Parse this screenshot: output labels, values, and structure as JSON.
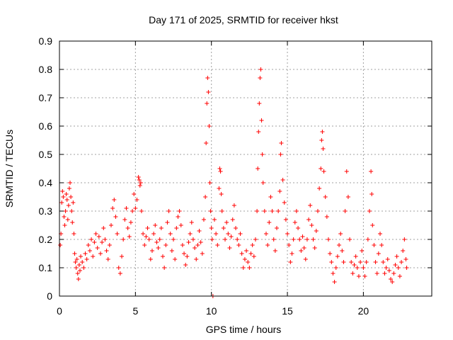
{
  "chart_data": {
    "type": "scatter",
    "title": "Day 171 of 2025, SRMTID for receiver hkst",
    "xlabel": "GPS time / hours",
    "ylabel": "SRMTID / TECUs",
    "xlim": [
      0,
      24.5
    ],
    "ylim": [
      0,
      0.9
    ],
    "x_ticks": [
      0,
      5,
      10,
      15,
      20
    ],
    "x_tick_labels": [
      "0",
      "5",
      "10",
      "15",
      "20"
    ],
    "y_ticks": [
      0,
      0.1,
      0.2,
      0.3,
      0.4,
      0.5,
      0.6,
      0.7,
      0.8,
      0.9
    ],
    "y_tick_labels": [
      "0",
      "0.1",
      "0.2",
      "0.3",
      "0.4",
      "0.5",
      "0.6",
      "0.7",
      "0.8",
      "0.9"
    ],
    "grid": true,
    "marker": "+",
    "series": [
      {
        "name": "SRMTID",
        "color": "#ff0000",
        "points": [
          [
            0.05,
            0.18
          ],
          [
            0.1,
            0.22
          ],
          [
            0.15,
            0.33
          ],
          [
            0.2,
            0.37
          ],
          [
            0.25,
            0.35
          ],
          [
            0.3,
            0.28
          ],
          [
            0.35,
            0.25
          ],
          [
            0.4,
            0.3
          ],
          [
            0.45,
            0.36
          ],
          [
            0.5,
            0.34
          ],
          [
            0.55,
            0.27
          ],
          [
            0.6,
            0.32
          ],
          [
            0.65,
            0.38
          ],
          [
            0.7,
            0.4
          ],
          [
            0.75,
            0.35
          ],
          [
            0.8,
            0.3
          ],
          [
            0.85,
            0.26
          ],
          [
            0.9,
            0.33
          ],
          [
            0.95,
            0.22
          ],
          [
            1.0,
            0.15
          ],
          [
            1.05,
            0.12
          ],
          [
            1.1,
            0.1
          ],
          [
            1.15,
            0.13
          ],
          [
            1.2,
            0.08
          ],
          [
            1.25,
            0.06
          ],
          [
            1.3,
            0.11
          ],
          [
            1.35,
            0.09
          ],
          [
            1.4,
            0.14
          ],
          [
            1.5,
            0.12
          ],
          [
            1.6,
            0.1
          ],
          [
            1.7,
            0.15
          ],
          [
            1.8,
            0.13
          ],
          [
            1.9,
            0.18
          ],
          [
            2.0,
            0.16
          ],
          [
            2.1,
            0.2
          ],
          [
            2.2,
            0.14
          ],
          [
            2.3,
            0.19
          ],
          [
            2.4,
            0.22
          ],
          [
            2.5,
            0.17
          ],
          [
            2.6,
            0.21
          ],
          [
            2.7,
            0.15
          ],
          [
            2.8,
            0.19
          ],
          [
            2.9,
            0.24
          ],
          [
            3.0,
            0.2
          ],
          [
            3.1,
            0.16
          ],
          [
            3.2,
            0.13
          ],
          [
            3.3,
            0.18
          ],
          [
            3.4,
            0.25
          ],
          [
            3.5,
            0.31
          ],
          [
            3.6,
            0.34
          ],
          [
            3.7,
            0.28
          ],
          [
            3.8,
            0.22
          ],
          [
            3.9,
            0.1
          ],
          [
            4.0,
            0.08
          ],
          [
            4.1,
            0.14
          ],
          [
            4.2,
            0.2
          ],
          [
            4.3,
            0.27
          ],
          [
            4.4,
            0.31
          ],
          [
            4.5,
            0.24
          ],
          [
            4.6,
            0.21
          ],
          [
            4.7,
            0.26
          ],
          [
            4.8,
            0.3
          ],
          [
            4.9,
            0.36
          ],
          [
            5.0,
            0.31
          ],
          [
            5.1,
            0.34
          ],
          [
            5.2,
            0.42
          ],
          [
            5.25,
            0.41
          ],
          [
            5.3,
            0.39
          ],
          [
            5.35,
            0.4
          ],
          [
            5.4,
            0.3
          ],
          [
            5.5,
            0.22
          ],
          [
            5.6,
            0.18
          ],
          [
            5.7,
            0.21
          ],
          [
            5.8,
            0.24
          ],
          [
            5.9,
            0.2
          ],
          [
            6.0,
            0.13
          ],
          [
            6.1,
            0.16
          ],
          [
            6.2,
            0.22
          ],
          [
            6.3,
            0.25
          ],
          [
            6.4,
            0.19
          ],
          [
            6.5,
            0.17
          ],
          [
            6.6,
            0.2
          ],
          [
            6.7,
            0.24
          ],
          [
            6.8,
            0.14
          ],
          [
            6.9,
            0.1
          ],
          [
            7.0,
            0.18
          ],
          [
            7.1,
            0.26
          ],
          [
            7.2,
            0.3
          ],
          [
            7.3,
            0.22
          ],
          [
            7.4,
            0.16
          ],
          [
            7.5,
            0.2
          ],
          [
            7.6,
            0.13
          ],
          [
            7.7,
            0.24
          ],
          [
            7.8,
            0.28
          ],
          [
            7.9,
            0.3
          ],
          [
            8.0,
            0.25
          ],
          [
            8.1,
            0.18
          ],
          [
            8.2,
            0.15
          ],
          [
            8.3,
            0.11
          ],
          [
            8.4,
            0.14
          ],
          [
            8.5,
            0.19
          ],
          [
            8.6,
            0.22
          ],
          [
            8.7,
            0.26
          ],
          [
            8.8,
            0.2
          ],
          [
            8.9,
            0.17
          ],
          [
            9.0,
            0.13
          ],
          [
            9.1,
            0.18
          ],
          [
            9.2,
            0.23
          ],
          [
            9.3,
            0.19
          ],
          [
            9.4,
            0.15
          ],
          [
            9.5,
            0.27
          ],
          [
            9.6,
            0.35
          ],
          [
            9.65,
            0.54
          ],
          [
            9.7,
            0.68
          ],
          [
            9.75,
            0.77
          ],
          [
            9.8,
            0.72
          ],
          [
            9.85,
            0.6
          ],
          [
            9.9,
            0.4
          ],
          [
            9.95,
            0.3
          ],
          [
            10.0,
            0.24
          ],
          [
            10.05,
            0.2
          ],
          [
            10.1,
            0.0
          ],
          [
            10.2,
            0.27
          ],
          [
            10.3,
            0.22
          ],
          [
            10.4,
            0.18
          ],
          [
            10.5,
            0.38
          ],
          [
            10.55,
            0.45
          ],
          [
            10.6,
            0.44
          ],
          [
            10.65,
            0.36
          ],
          [
            10.7,
            0.3
          ],
          [
            10.8,
            0.24
          ],
          [
            10.9,
            0.2
          ],
          [
            11.0,
            0.26
          ],
          [
            11.1,
            0.22
          ],
          [
            11.2,
            0.17
          ],
          [
            11.3,
            0.21
          ],
          [
            11.4,
            0.27
          ],
          [
            11.5,
            0.32
          ],
          [
            11.6,
            0.24
          ],
          [
            11.7,
            0.2
          ],
          [
            11.8,
            0.18
          ],
          [
            11.9,
            0.22
          ],
          [
            12.0,
            0.15
          ],
          [
            12.1,
            0.1
          ],
          [
            12.2,
            0.13
          ],
          [
            12.3,
            0.16
          ],
          [
            12.4,
            0.12
          ],
          [
            12.5,
            0.1
          ],
          [
            12.6,
            0.15
          ],
          [
            12.7,
            0.18
          ],
          [
            12.8,
            0.14
          ],
          [
            12.9,
            0.2
          ],
          [
            13.0,
            0.3
          ],
          [
            13.05,
            0.45
          ],
          [
            13.1,
            0.58
          ],
          [
            13.15,
            0.68
          ],
          [
            13.2,
            0.77
          ],
          [
            13.25,
            0.8
          ],
          [
            13.3,
            0.62
          ],
          [
            13.35,
            0.5
          ],
          [
            13.4,
            0.4
          ],
          [
            13.5,
            0.3
          ],
          [
            13.6,
            0.22
          ],
          [
            13.7,
            0.18
          ],
          [
            13.8,
            0.26
          ],
          [
            13.9,
            0.35
          ],
          [
            14.0,
            0.3
          ],
          [
            14.1,
            0.2
          ],
          [
            14.2,
            0.16
          ],
          [
            14.3,
            0.24
          ],
          [
            14.4,
            0.3
          ],
          [
            14.5,
            0.37
          ],
          [
            14.55,
            0.5
          ],
          [
            14.6,
            0.54
          ],
          [
            14.7,
            0.41
          ],
          [
            14.8,
            0.33
          ],
          [
            14.9,
            0.27
          ],
          [
            15.0,
            0.22
          ],
          [
            15.1,
            0.18
          ],
          [
            15.2,
            0.12
          ],
          [
            15.3,
            0.15
          ],
          [
            15.4,
            0.2
          ],
          [
            15.5,
            0.26
          ],
          [
            15.6,
            0.3
          ],
          [
            15.7,
            0.24
          ],
          [
            15.8,
            0.2
          ],
          [
            15.9,
            0.16
          ],
          [
            16.0,
            0.21
          ],
          [
            16.1,
            0.17
          ],
          [
            16.2,
            0.13
          ],
          [
            16.3,
            0.2
          ],
          [
            16.4,
            0.27
          ],
          [
            16.5,
            0.32
          ],
          [
            16.6,
            0.25
          ],
          [
            16.7,
            0.2
          ],
          [
            16.8,
            0.17
          ],
          [
            16.9,
            0.23
          ],
          [
            17.0,
            0.3
          ],
          [
            17.1,
            0.38
          ],
          [
            17.2,
            0.45
          ],
          [
            17.25,
            0.55
          ],
          [
            17.3,
            0.58
          ],
          [
            17.35,
            0.52
          ],
          [
            17.4,
            0.44
          ],
          [
            17.5,
            0.35
          ],
          [
            17.6,
            0.28
          ],
          [
            17.7,
            0.2
          ],
          [
            17.8,
            0.15
          ],
          [
            17.9,
            0.12
          ],
          [
            18.0,
            0.08
          ],
          [
            18.1,
            0.05
          ],
          [
            18.2,
            0.1
          ],
          [
            18.3,
            0.14
          ],
          [
            18.4,
            0.18
          ],
          [
            18.5,
            0.22
          ],
          [
            18.6,
            0.16
          ],
          [
            18.7,
            0.12
          ],
          [
            18.8,
            0.3
          ],
          [
            18.9,
            0.44
          ],
          [
            19.0,
            0.35
          ],
          [
            19.1,
            0.2
          ],
          [
            19.2,
            0.12
          ],
          [
            19.3,
            0.08
          ],
          [
            19.4,
            0.11
          ],
          [
            19.5,
            0.14
          ],
          [
            19.6,
            0.1
          ],
          [
            19.7,
            0.07
          ],
          [
            19.8,
            0.12
          ],
          [
            19.9,
            0.16
          ],
          [
            20.0,
            0.1
          ],
          [
            20.1,
            0.07
          ],
          [
            20.2,
            0.12
          ],
          [
            20.3,
            0.2
          ],
          [
            20.4,
            0.3
          ],
          [
            20.5,
            0.44
          ],
          [
            20.55,
            0.36
          ],
          [
            20.6,
            0.25
          ],
          [
            20.7,
            0.18
          ],
          [
            20.8,
            0.12
          ],
          [
            20.9,
            0.08
          ],
          [
            21.0,
            0.15
          ],
          [
            21.1,
            0.22
          ],
          [
            21.2,
            0.18
          ],
          [
            21.3,
            0.12
          ],
          [
            21.4,
            0.08
          ],
          [
            21.5,
            0.1
          ],
          [
            21.6,
            0.13
          ],
          [
            21.7,
            0.09
          ],
          [
            21.8,
            0.06
          ],
          [
            21.9,
            0.05
          ],
          [
            22.0,
            0.08
          ],
          [
            22.1,
            0.11
          ],
          [
            22.2,
            0.14
          ],
          [
            22.3,
            0.1
          ],
          [
            22.4,
            0.07
          ],
          [
            22.5,
            0.12
          ],
          [
            22.6,
            0.16
          ],
          [
            22.7,
            0.2
          ],
          [
            22.8,
            0.13
          ],
          [
            22.85,
            0.1
          ]
        ]
      }
    ]
  }
}
